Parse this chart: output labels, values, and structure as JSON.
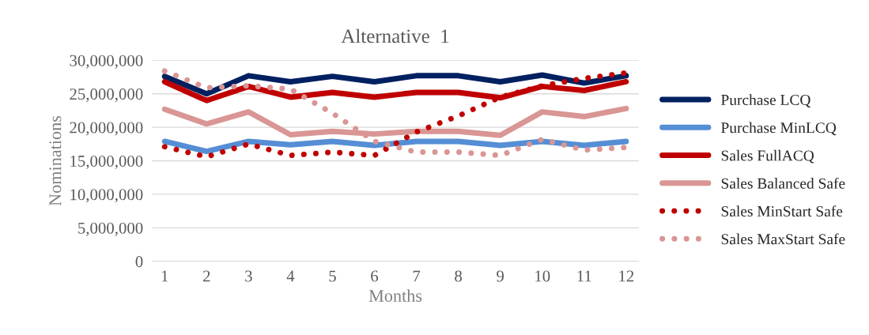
{
  "chart_data": {
    "type": "line",
    "title": "Alternative  1",
    "xlabel": "Months",
    "ylabel": "Nominations",
    "categories": [
      "1",
      "2",
      "3",
      "4",
      "5",
      "6",
      "7",
      "8",
      "9",
      "10",
      "11",
      "12"
    ],
    "series": [
      {
        "name": "Purchase LCQ",
        "color": "#002060",
        "line_style": "solid",
        "values": [
          27600000,
          25000000,
          27700000,
          26800000,
          27600000,
          26800000,
          27700000,
          27700000,
          26800000,
          27800000,
          26600000,
          27700000
        ]
      },
      {
        "name": "Purchase MinLCQ",
        "color": "#558ed5",
        "line_style": "solid",
        "values": [
          17900000,
          16400000,
          17900000,
          17400000,
          17900000,
          17300000,
          17900000,
          17900000,
          17300000,
          17900000,
          17300000,
          17900000
        ]
      },
      {
        "name": "Sales FullACQ",
        "color": "#c00000",
        "line_style": "solid",
        "values": [
          26800000,
          24000000,
          26100000,
          24500000,
          25200000,
          24500000,
          25200000,
          25200000,
          24400000,
          26100000,
          25500000,
          26800000
        ]
      },
      {
        "name": "Sales Balanced Safe",
        "color": "#d99694",
        "line_style": "solid",
        "values": [
          22700000,
          20500000,
          22300000,
          18900000,
          19400000,
          19000000,
          19400000,
          19400000,
          18800000,
          22300000,
          21600000,
          22800000
        ]
      },
      {
        "name": "Sales MinStart Safe",
        "color": "#c00000",
        "line_style": "dotted",
        "values": [
          17100000,
          15600000,
          17500000,
          15800000,
          16300000,
          15800000,
          19300000,
          21700000,
          24500000,
          26200000,
          27300000,
          28100000
        ]
      },
      {
        "name": "Sales MaxStart Safe",
        "color": "#d99694",
        "line_style": "dotted",
        "values": [
          28400000,
          25900000,
          26200000,
          25700000,
          22100000,
          17900000,
          16300000,
          16300000,
          15800000,
          18200000,
          16600000,
          17000000
        ]
      }
    ],
    "ylim": [
      0,
      30000000
    ],
    "yticks": [
      {
        "value": 0,
        "label": "0"
      },
      {
        "value": 5000000,
        "label": "5,000,000"
      },
      {
        "value": 10000000,
        "label": "10,000,000"
      },
      {
        "value": 15000000,
        "label": "15,000,000"
      },
      {
        "value": 20000000,
        "label": "20,000,000"
      },
      {
        "value": 25000000,
        "label": "25,000,000"
      },
      {
        "value": 30000000,
        "label": "30,000,000"
      }
    ],
    "grid": "y",
    "legend": "right"
  }
}
